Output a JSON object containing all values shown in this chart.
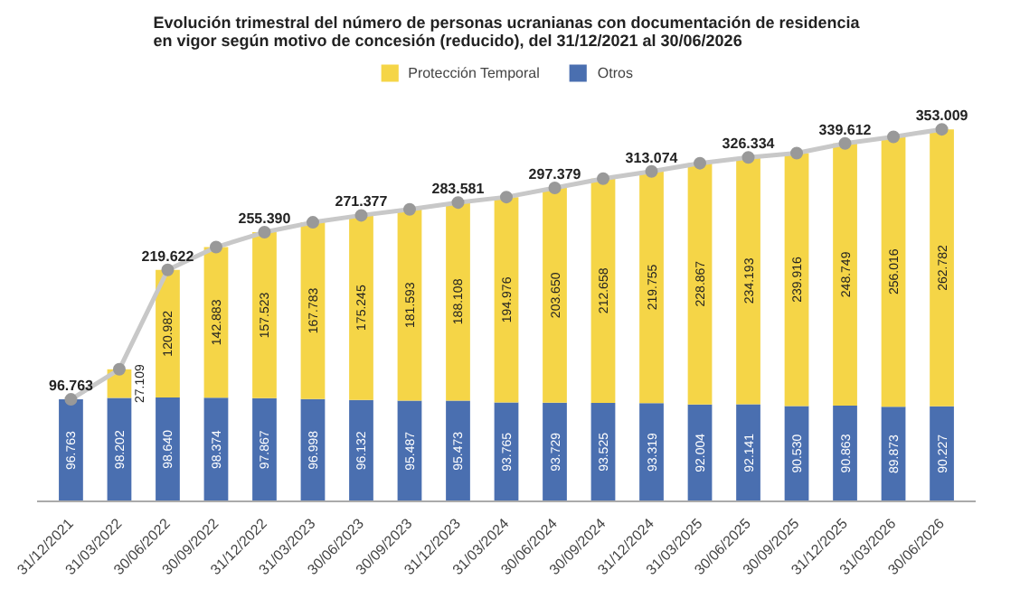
{
  "chart_data": {
    "type": "bar",
    "stacked": true,
    "title": "Evolución trimestral del número de personas ucranianas con documentación de residencia\nen vigor según motivo de concesión (reducido), del 31/12/2021 al 30/06/2026",
    "categories": [
      "31/12/2021",
      "31/03/2022",
      "30/06/2022",
      "30/09/2022",
      "31/12/2022",
      "31/03/2023",
      "30/06/2023",
      "30/09/2023",
      "31/12/2023",
      "31/03/2024",
      "30/06/2024",
      "30/09/2024",
      "31/12/2024",
      "31/03/2025",
      "30/06/2025",
      "30/09/2025",
      "31/12/2025",
      "31/03/2026",
      "30/06/2026"
    ],
    "ylim": [
      0,
      420000
    ],
    "tick_labels": "x",
    "grid": false,
    "legend": "top",
    "series": [
      {
        "name": "Otros",
        "color": "#4a6fb0",
        "values": [
          96763,
          98202,
          98640,
          98374,
          97867,
          96998,
          96132,
          95487,
          95473,
          93765,
          93729,
          93525,
          93319,
          92004,
          92141,
          90530,
          90863,
          89873,
          90227
        ],
        "value_labels": [
          "96.763",
          "98.202",
          "98.640",
          "98.374",
          "97.867",
          "96.998",
          "96.132",
          "95.487",
          "95.473",
          "93.765",
          "93.729",
          "93.525",
          "93.319",
          "92.004",
          "92.141",
          "90.530",
          "90.863",
          "89.873",
          "90.227"
        ]
      },
      {
        "name": "Protección Temporal",
        "color": "#f5d547",
        "values": [
          null,
          27109,
          120982,
          142883,
          157523,
          167783,
          175245,
          181593,
          188108,
          194976,
          203650,
          212658,
          219755,
          228867,
          234193,
          239916,
          248749,
          256016,
          262782
        ],
        "value_labels": [
          null,
          "27.109",
          "120.982",
          "142.883",
          "157.523",
          "167.783",
          "175.245",
          "181.593",
          "188.108",
          "194.976",
          "203.650",
          "212.658",
          "219.755",
          "228.867",
          "234.193",
          "239.916",
          "248.749",
          "256.016",
          "262.782"
        ]
      },
      {
        "type": "line",
        "color": "#c8c8c8",
        "marker": "circle",
        "values": [
          96763,
          125311,
          219622,
          241257,
          255390,
          264781,
          271377,
          277080,
          283581,
          288741,
          297379,
          306183,
          313074,
          320871,
          326334,
          330446,
          339612,
          345889,
          353009
        ],
        "value_labels": [
          "96.763",
          null,
          "219.622",
          null,
          "255.390",
          null,
          "271.377",
          null,
          "283.581",
          null,
          "297.379",
          null,
          "313.074",
          null,
          "326.334",
          null,
          "339.612",
          null,
          "353.009"
        ]
      }
    ]
  }
}
